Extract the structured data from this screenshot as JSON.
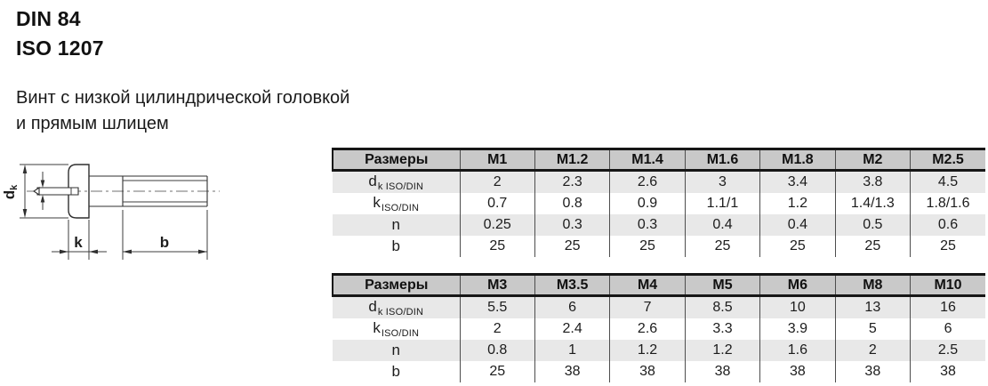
{
  "header": {
    "line1": "DIN 84",
    "line2": "ISO 1207"
  },
  "subtitle": {
    "line1": "Винт с низкой цилиндрической головкой",
    "line2": "и прямым шлицем"
  },
  "drawing": {
    "dk_main": "d",
    "dk_sub": "k",
    "k_label": "k",
    "b_label": "b"
  },
  "tables": [
    {
      "header": [
        "Размеры",
        "M1",
        "M1.2",
        "M1.4",
        "M1.6",
        "M1.8",
        "M2",
        "M2.5"
      ],
      "rows": [
        {
          "label_main": "d",
          "label_sub": "k ISO/DIN",
          "values": [
            "2",
            "2.3",
            "2.6",
            "3",
            "3.4",
            "3.8",
            "4.5"
          ]
        },
        {
          "label_main": "k",
          "label_sub": "ISO/DIN",
          "values": [
            "0.7",
            "0.8",
            "0.9",
            "1.1/1",
            "1.2",
            "1.4/1.3",
            "1.8/1.6"
          ]
        },
        {
          "label_main": "n",
          "label_sub": "",
          "values": [
            "0.25",
            "0.3",
            "0.3",
            "0.4",
            "0.4",
            "0.5",
            "0.6"
          ]
        },
        {
          "label_main": "b",
          "label_sub": "",
          "values": [
            "25",
            "25",
            "25",
            "25",
            "25",
            "25",
            "25"
          ]
        }
      ]
    },
    {
      "header": [
        "Размеры",
        "M3",
        "M3.5",
        "M4",
        "M5",
        "M6",
        "M8",
        "M10"
      ],
      "rows": [
        {
          "label_main": "d",
          "label_sub": "k ISO/DIN",
          "values": [
            "5.5",
            "6",
            "7",
            "8.5",
            "10",
            "13",
            "16"
          ]
        },
        {
          "label_main": "k",
          "label_sub": "ISO/DIN",
          "values": [
            "2",
            "2.4",
            "2.6",
            "3.3",
            "3.9",
            "5",
            "6"
          ]
        },
        {
          "label_main": "n",
          "label_sub": "",
          "values": [
            "0.8",
            "1",
            "1.2",
            "1.2",
            "1.6",
            "2",
            "2.5"
          ]
        },
        {
          "label_main": "b",
          "label_sub": "",
          "values": [
            "25",
            "38",
            "38",
            "38",
            "38",
            "38",
            "38"
          ]
        }
      ]
    }
  ],
  "colors": {
    "header_bg": "#c9c9c9",
    "row_alt_bg": "#e8e8e8",
    "thick_border": "#161616",
    "separator": "#4d4d4d",
    "text": "#1c1c1c"
  }
}
